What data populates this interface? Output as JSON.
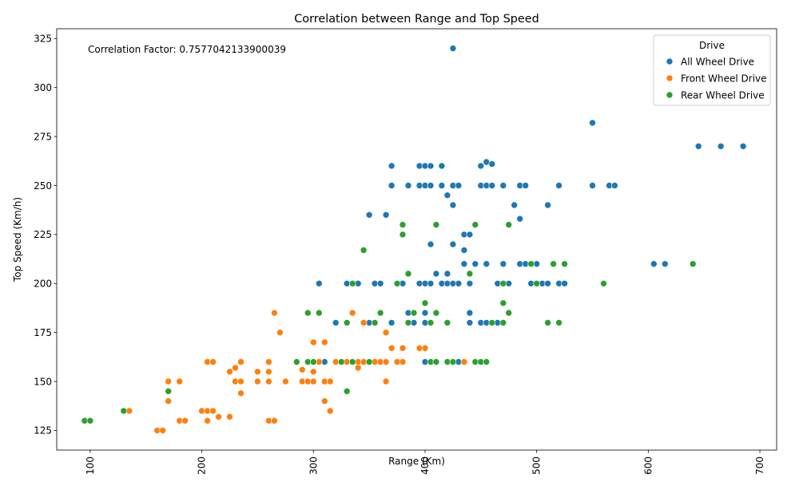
{
  "chart_data": {
    "type": "scatter",
    "title": "Correlation between Range and Top Speed",
    "xlabel": "Range (Km)",
    "ylabel": "Top Speed (Km/h)",
    "xlim": [
      70,
      715
    ],
    "ylim": [
      115,
      330
    ],
    "xticks": [
      100,
      200,
      300,
      400,
      500,
      600,
      700
    ],
    "yticks": [
      125,
      150,
      175,
      200,
      225,
      250,
      275,
      300,
      325
    ],
    "grid": false,
    "annotation": "Correlation Factor: 0.7577042133900039",
    "legend": {
      "title": "Drive",
      "placement": "top-right"
    },
    "series": [
      {
        "name": "All Wheel Drive",
        "color": "#1f77b4",
        "points": [
          [
            425,
            320
          ],
          [
            550,
            282
          ],
          [
            645,
            270
          ],
          [
            665,
            270
          ],
          [
            685,
            270
          ],
          [
            455,
            262
          ],
          [
            460,
            261
          ],
          [
            370,
            260
          ],
          [
            395,
            260
          ],
          [
            400,
            260
          ],
          [
            405,
            260
          ],
          [
            415,
            260
          ],
          [
            450,
            260
          ],
          [
            370,
            250
          ],
          [
            385,
            250
          ],
          [
            395,
            250
          ],
          [
            400,
            250
          ],
          [
            405,
            250
          ],
          [
            415,
            250
          ],
          [
            425,
            250
          ],
          [
            430,
            250
          ],
          [
            450,
            250
          ],
          [
            455,
            250
          ],
          [
            460,
            250
          ],
          [
            470,
            250
          ],
          [
            485,
            250
          ],
          [
            490,
            250
          ],
          [
            520,
            250
          ],
          [
            550,
            250
          ],
          [
            565,
            250
          ],
          [
            570,
            250
          ],
          [
            420,
            245
          ],
          [
            425,
            240
          ],
          [
            480,
            240
          ],
          [
            510,
            240
          ],
          [
            350,
            235
          ],
          [
            365,
            235
          ],
          [
            485,
            233
          ],
          [
            405,
            220
          ],
          [
            425,
            220
          ],
          [
            435,
            225
          ],
          [
            440,
            225
          ],
          [
            435,
            217
          ],
          [
            435,
            210
          ],
          [
            445,
            210
          ],
          [
            455,
            210
          ],
          [
            470,
            210
          ],
          [
            485,
            210
          ],
          [
            490,
            210
          ],
          [
            500,
            210
          ],
          [
            605,
            210
          ],
          [
            615,
            210
          ],
          [
            305,
            200
          ],
          [
            330,
            200
          ],
          [
            340,
            200
          ],
          [
            355,
            200
          ],
          [
            360,
            200
          ],
          [
            380,
            200
          ],
          [
            395,
            200
          ],
          [
            400,
            200
          ],
          [
            405,
            200
          ],
          [
            415,
            200
          ],
          [
            420,
            200
          ],
          [
            425,
            200
          ],
          [
            430,
            200
          ],
          [
            440,
            200
          ],
          [
            465,
            200
          ],
          [
            475,
            200
          ],
          [
            495,
            200
          ],
          [
            505,
            200
          ],
          [
            510,
            200
          ],
          [
            520,
            200
          ],
          [
            525,
            200
          ],
          [
            410,
            205
          ],
          [
            420,
            205
          ],
          [
            385,
            185
          ],
          [
            400,
            185
          ],
          [
            440,
            185
          ],
          [
            320,
            180
          ],
          [
            350,
            180
          ],
          [
            370,
            180
          ],
          [
            390,
            180
          ],
          [
            400,
            180
          ],
          [
            440,
            180
          ],
          [
            450,
            180
          ],
          [
            455,
            180
          ],
          [
            465,
            180
          ],
          [
            310,
            160
          ],
          [
            400,
            160
          ],
          [
            430,
            160
          ]
        ]
      },
      {
        "name": "Front Wheel Drive",
        "color": "#ff7f0e",
        "points": [
          [
            265,
            185
          ],
          [
            335,
            185
          ],
          [
            270,
            175
          ],
          [
            365,
            175
          ],
          [
            300,
            170
          ],
          [
            310,
            170
          ],
          [
            370,
            167
          ],
          [
            380,
            167
          ],
          [
            395,
            167
          ],
          [
            400,
            167
          ],
          [
            345,
            180
          ],
          [
            355,
            180
          ],
          [
            205,
            160
          ],
          [
            210,
            160
          ],
          [
            235,
            160
          ],
          [
            260,
            160
          ],
          [
            295,
            160
          ],
          [
            305,
            160
          ],
          [
            320,
            160
          ],
          [
            330,
            160
          ],
          [
            340,
            160
          ],
          [
            345,
            160
          ],
          [
            355,
            160
          ],
          [
            360,
            160
          ],
          [
            365,
            160
          ],
          [
            375,
            160
          ],
          [
            380,
            160
          ],
          [
            435,
            160
          ],
          [
            230,
            157
          ],
          [
            340,
            157
          ],
          [
            225,
            155
          ],
          [
            250,
            155
          ],
          [
            260,
            155
          ],
          [
            290,
            156
          ],
          [
            300,
            155
          ],
          [
            170,
            150
          ],
          [
            180,
            150
          ],
          [
            230,
            150
          ],
          [
            235,
            150
          ],
          [
            250,
            150
          ],
          [
            260,
            150
          ],
          [
            275,
            150
          ],
          [
            290,
            150
          ],
          [
            295,
            150
          ],
          [
            300,
            150
          ],
          [
            310,
            150
          ],
          [
            315,
            150
          ],
          [
            365,
            150
          ],
          [
            235,
            144
          ],
          [
            170,
            140
          ],
          [
            310,
            140
          ],
          [
            135,
            135
          ],
          [
            200,
            135
          ],
          [
            205,
            135
          ],
          [
            210,
            135
          ],
          [
            315,
            135
          ],
          [
            215,
            132
          ],
          [
            225,
            132
          ],
          [
            180,
            130
          ],
          [
            185,
            130
          ],
          [
            205,
            130
          ],
          [
            260,
            130
          ],
          [
            265,
            130
          ],
          [
            160,
            125
          ],
          [
            165,
            125
          ]
        ]
      },
      {
        "name": "Rear Wheel Drive",
        "color": "#2ca02c",
        "points": [
          [
            640,
            210
          ],
          [
            380,
            230
          ],
          [
            410,
            230
          ],
          [
            445,
            230
          ],
          [
            475,
            230
          ],
          [
            380,
            225
          ],
          [
            345,
            217
          ],
          [
            495,
            210
          ],
          [
            515,
            210
          ],
          [
            525,
            210
          ],
          [
            385,
            205
          ],
          [
            440,
            205
          ],
          [
            335,
            200
          ],
          [
            375,
            200
          ],
          [
            470,
            200
          ],
          [
            500,
            200
          ],
          [
            560,
            200
          ],
          [
            400,
            190
          ],
          [
            470,
            190
          ],
          [
            295,
            185
          ],
          [
            305,
            185
          ],
          [
            360,
            185
          ],
          [
            390,
            185
          ],
          [
            410,
            185
          ],
          [
            475,
            185
          ],
          [
            330,
            180
          ],
          [
            355,
            180
          ],
          [
            385,
            180
          ],
          [
            405,
            180
          ],
          [
            420,
            180
          ],
          [
            460,
            180
          ],
          [
            470,
            180
          ],
          [
            510,
            180
          ],
          [
            520,
            180
          ],
          [
            285,
            160
          ],
          [
            295,
            160
          ],
          [
            300,
            160
          ],
          [
            325,
            160
          ],
          [
            335,
            160
          ],
          [
            350,
            160
          ],
          [
            405,
            160
          ],
          [
            410,
            160
          ],
          [
            420,
            160
          ],
          [
            425,
            160
          ],
          [
            445,
            160
          ],
          [
            450,
            160
          ],
          [
            455,
            160
          ],
          [
            170,
            145
          ],
          [
            330,
            145
          ],
          [
            130,
            135
          ],
          [
            95,
            130
          ],
          [
            100,
            130
          ]
        ]
      }
    ]
  }
}
